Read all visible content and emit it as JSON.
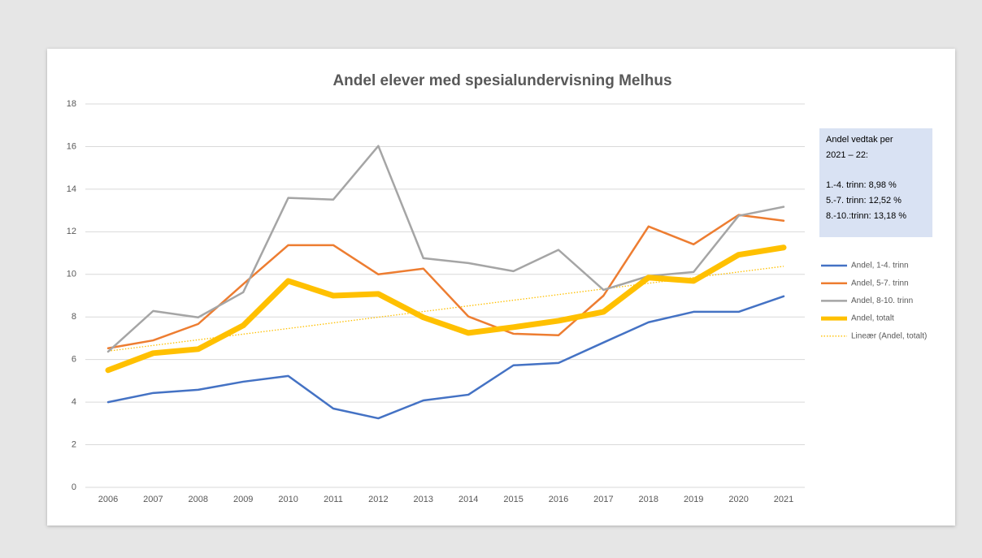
{
  "chart_data": {
    "type": "line",
    "title": "Andel elever med spesialundervisning Melhus",
    "categories": [
      "2006",
      "2007",
      "2008",
      "2009",
      "2010",
      "2011",
      "2012",
      "2013",
      "2014",
      "2015",
      "2016",
      "2017",
      "2018",
      "2019",
      "2020",
      "2021"
    ],
    "series": [
      {
        "name": "Andel, 1-4. trinn",
        "color": "#4472c4",
        "width": 2.5,
        "values": [
          4.0,
          4.43,
          4.58,
          4.96,
          5.23,
          3.7,
          3.24,
          4.08,
          4.35,
          5.73,
          5.84,
          6.8,
          7.75,
          8.24,
          8.24,
          8.97
        ]
      },
      {
        "name": "Andel, 5-7. trinn",
        "color": "#ed7d31",
        "width": 2.5,
        "values": [
          6.53,
          6.9,
          7.67,
          9.54,
          11.37,
          11.37,
          10.0,
          10.27,
          8.02,
          7.21,
          7.14,
          9.0,
          12.25,
          11.41,
          12.79,
          12.52
        ]
      },
      {
        "name": "Andel, 8-10. trinn",
        "color": "#a5a5a5",
        "width": 2.5,
        "values": [
          6.37,
          8.28,
          7.98,
          9.16,
          13.59,
          13.51,
          16.03,
          10.76,
          10.53,
          10.15,
          11.15,
          9.27,
          9.92,
          10.11,
          12.75,
          13.17
        ]
      },
      {
        "name": "Andel, totalt",
        "color": "#ffc000",
        "width": 7,
        "values": [
          5.5,
          6.3,
          6.49,
          7.6,
          9.69,
          9.0,
          9.08,
          7.98,
          7.25,
          7.52,
          7.82,
          8.24,
          9.85,
          9.69,
          10.92,
          11.26
        ]
      }
    ],
    "trendline": {
      "name": "Lineær (Andel, totalt)",
      "series": 3,
      "color": "#ffc000",
      "dotted": true
    },
    "ylim": [
      0,
      18
    ],
    "yticks": [
      0,
      2,
      4,
      6,
      8,
      10,
      12,
      14,
      16,
      18
    ],
    "grid": true,
    "annotation": {
      "lines": [
        "Andel vedtak per",
        "2021 – 22:",
        "1.-4. trinn: 8,98 %",
        "5.-7. trinn: 12,52 %",
        "8.-10.:trinn: 13,18 %"
      ],
      "fill": "#d9e2f3"
    }
  }
}
